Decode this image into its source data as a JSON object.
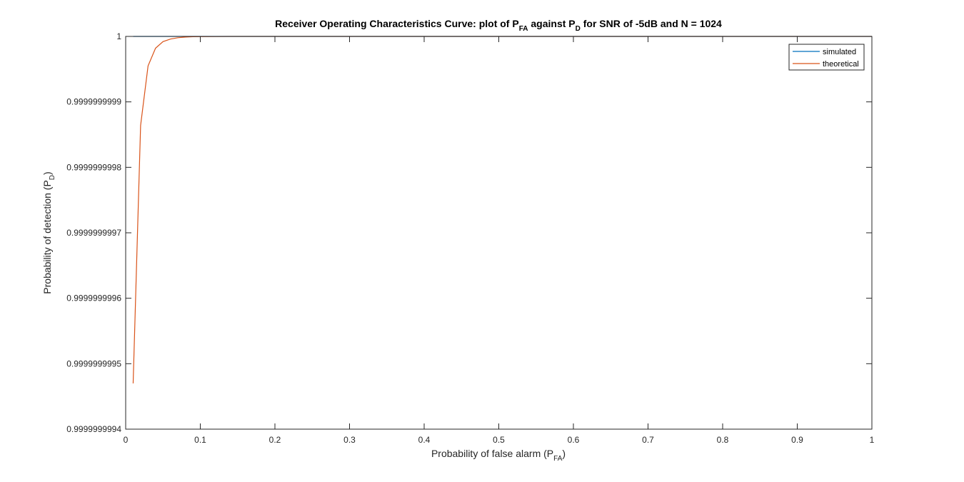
{
  "chart_data": {
    "type": "line",
    "title": {
      "text_before": "Receiver Operating Characteristics Curve: plot of P",
      "sub1": "FA",
      "text_middle": " against P",
      "sub2": "D",
      "text_after": " for SNR of -5dB and N = 1024"
    },
    "xlabel": {
      "main": "Probability of false alarm (P",
      "sub": "FA",
      "close": ")"
    },
    "ylabel": {
      "main": "Probability of detection (P",
      "sub": "D",
      "close": ")"
    },
    "xlim": [
      0,
      1
    ],
    "ylim": [
      0.9999999994,
      1.0
    ],
    "xticks": [
      0,
      0.1,
      0.2,
      0.3,
      0.4,
      0.5,
      0.6,
      0.7,
      0.8,
      0.9,
      1
    ],
    "xtick_labels": [
      "0",
      "0.1",
      "0.2",
      "0.3",
      "0.4",
      "0.5",
      "0.6",
      "0.7",
      "0.8",
      "0.9",
      "1"
    ],
    "yticks": [
      0.9999999994,
      0.9999999995,
      0.9999999996,
      0.9999999997,
      0.9999999998,
      0.9999999999,
      1.0
    ],
    "ytick_labels": [
      "0.9999999994",
      "0.9999999995",
      "0.9999999996",
      "0.9999999997",
      "0.9999999998",
      "0.9999999999",
      "1"
    ],
    "grid": false,
    "legend_position": "top-right",
    "series": [
      {
        "name": "simulated",
        "color": "#0072bd",
        "x": [
          0.01,
          0.1,
          0.2,
          0.3,
          0.4,
          0.5,
          0.6,
          0.7,
          0.8,
          0.9,
          1.0
        ],
        "y": [
          1.0,
          1.0,
          1.0,
          1.0,
          1.0,
          1.0,
          1.0,
          1.0,
          1.0,
          1.0,
          1.0
        ]
      },
      {
        "name": "theoretical",
        "color": "#d95319",
        "x": [
          0.01,
          0.02,
          0.03,
          0.04,
          0.05,
          0.06,
          0.07,
          0.08,
          0.09,
          0.1,
          0.12,
          0.14,
          0.16,
          0.2,
          0.3,
          0.4,
          0.5,
          0.6,
          0.7,
          0.8,
          0.9,
          1.0
        ],
        "y": [
          0.99999999947,
          0.999999999864,
          0.999999999955,
          0.999999999982,
          0.999999999992,
          0.999999999996,
          0.999999999998,
          0.999999999999,
          0.9999999999995,
          0.9999999999997,
          0.9999999999999,
          1.0,
          1.0,
          1.0,
          1.0,
          1.0,
          1.0,
          1.0,
          1.0,
          1.0,
          1.0,
          1.0
        ]
      }
    ]
  }
}
